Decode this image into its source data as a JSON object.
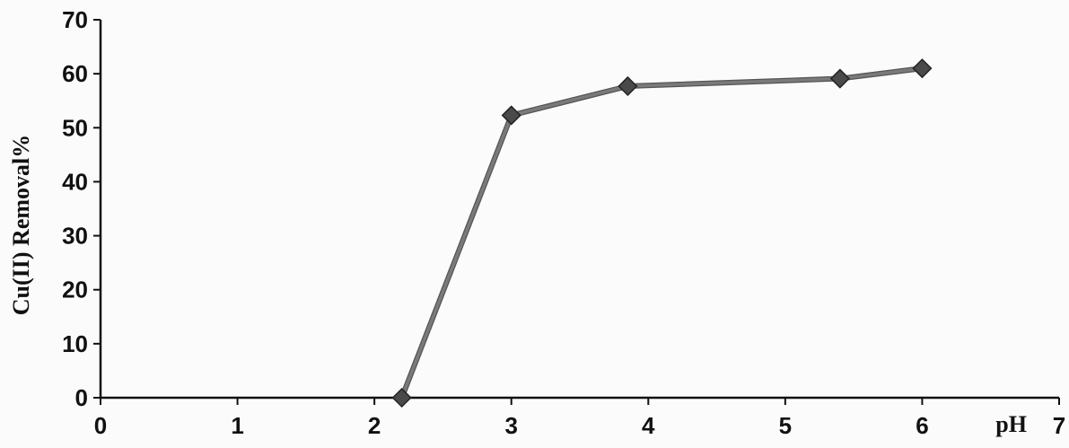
{
  "chart_data": {
    "type": "line",
    "title": "",
    "xlabel": "pH",
    "ylabel": "Cu(II) Removal%",
    "xlim": [
      0,
      7
    ],
    "ylim": [
      0,
      70
    ],
    "xticks": [
      0,
      1,
      2,
      3,
      4,
      5,
      6,
      7
    ],
    "yticks": [
      0,
      10,
      20,
      30,
      40,
      50,
      60,
      70
    ],
    "grid": false,
    "legend": "none",
    "marker": "diamond",
    "colors": {
      "line": "#7a7a7a",
      "marker": "#4a4a4a",
      "axis": "#111111"
    },
    "series": [
      {
        "x": [
          2.2,
          3.0,
          3.85,
          5.4,
          6.0
        ],
        "y": [
          0,
          52.3,
          57.7,
          59.1,
          61.0
        ]
      }
    ]
  }
}
